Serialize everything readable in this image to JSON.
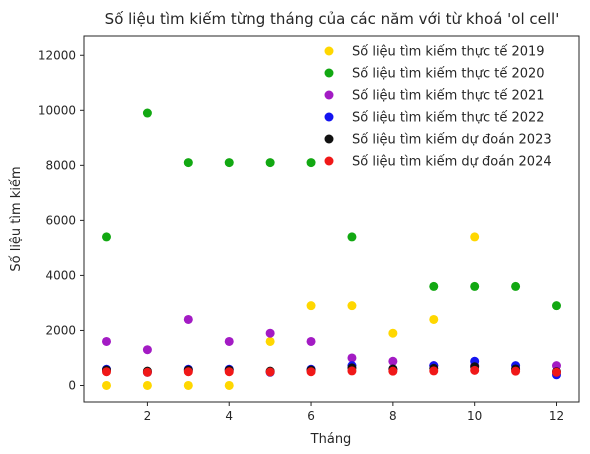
{
  "chart_data": {
    "type": "scatter",
    "title": "Số liệu tìm kiếm từng tháng của các năm với từ khoá 'ol cell'",
    "xlabel": "Tháng",
    "ylabel": "Số liệu tìm kiếm",
    "xlim": [
      0.45,
      12.55
    ],
    "ylim": [
      -600,
      12700
    ],
    "xticks": [
      2,
      4,
      6,
      8,
      10,
      12
    ],
    "yticks": [
      0,
      2000,
      4000,
      6000,
      8000,
      10000,
      12000
    ],
    "grid": false,
    "legend_position": "top-right",
    "series": [
      {
        "name": "Số liệu tìm kiếm thực tế 2019",
        "color": "#ffd700",
        "x": [
          1,
          2,
          3,
          4,
          5,
          6,
          7,
          8,
          9,
          10,
          11,
          12
        ],
        "y": [
          0,
          0,
          0,
          0,
          1600,
          2900,
          2900,
          1900,
          2400,
          5400,
          null,
          null
        ]
      },
      {
        "name": "Số liệu tìm kiếm thực tế 2020",
        "color": "#12a812",
        "x": [
          1,
          2,
          3,
          4,
          5,
          6,
          7,
          8,
          9,
          10,
          11,
          12
        ],
        "y": [
          5400,
          9900,
          8100,
          8100,
          8100,
          8100,
          5400,
          null,
          3600,
          3600,
          3600,
          2900
        ]
      },
      {
        "name": "Số liệu tìm kiếm thực tế 2021",
        "color": "#a31bc4",
        "x": [
          1,
          2,
          3,
          4,
          5,
          6,
          7,
          8,
          9,
          10,
          11,
          12
        ],
        "y": [
          1600,
          1300,
          2400,
          1600,
          1900,
          1600,
          1000,
          880,
          720,
          720,
          590,
          720
        ]
      },
      {
        "name": "Số liệu tìm kiếm thực tế 2022",
        "color": "#1414f0",
        "x": [
          1,
          2,
          3,
          4,
          5,
          6,
          7,
          8,
          9,
          10,
          11,
          12
        ],
        "y": [
          590,
          480,
          590,
          590,
          480,
          590,
          720,
          590,
          720,
          880,
          720,
          390
        ]
      },
      {
        "name": "Số liệu tìm kiếm dự đoán 2023",
        "color": "#111111",
        "x": [
          1,
          2,
          3,
          4,
          5,
          6,
          7,
          8,
          9,
          10,
          11,
          12
        ],
        "y": [
          560,
          520,
          560,
          560,
          520,
          560,
          640,
          600,
          620,
          680,
          600,
          500
        ]
      },
      {
        "name": "Số liệu tìm kiếm dự đoán 2024",
        "color": "#f01818",
        "x": [
          1,
          2,
          3,
          4,
          5,
          6,
          7,
          8,
          9,
          10,
          11,
          12
        ],
        "y": [
          500,
          480,
          500,
          500,
          490,
          500,
          530,
          520,
          530,
          550,
          520,
          480
        ]
      }
    ]
  }
}
